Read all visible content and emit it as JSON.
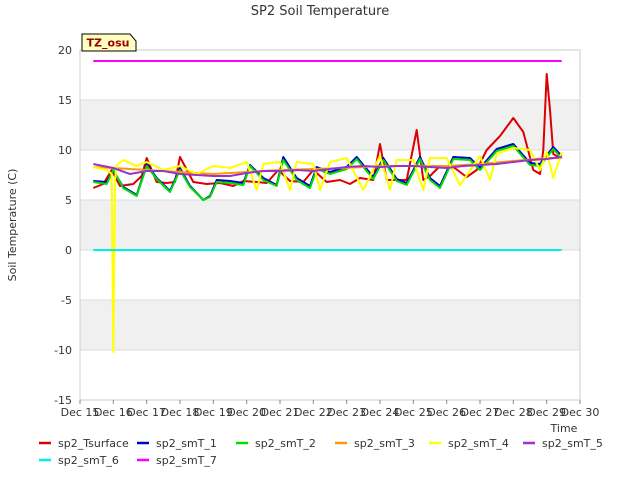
{
  "chart_data": {
    "type": "line",
    "title": "SP2 Soil Temperature",
    "xlabel": "Time",
    "ylabel": "Soil Temperature (C)",
    "badge": "TZ_osu",
    "xlim": [
      15,
      30
    ],
    "ylim": [
      -15,
      20
    ],
    "x_ticks": [
      15,
      16,
      17,
      18,
      19,
      20,
      21,
      22,
      23,
      24,
      25,
      26,
      27,
      28,
      29,
      30
    ],
    "x_tick_labels": [
      "Dec 15",
      "Dec 16",
      "Dec 17",
      "Dec 18",
      "Dec 19",
      "Dec 20",
      "Dec 21",
      "Dec 22",
      "Dec 23",
      "Dec 24",
      "Dec 25",
      "Dec 26",
      "Dec 27",
      "Dec 28",
      "Dec 29",
      "Dec 30"
    ],
    "y_ticks": [
      -15,
      -10,
      -5,
      0,
      5,
      10,
      15,
      20
    ],
    "y_tick_labels": [
      "-15",
      "-10",
      "-5",
      "0",
      "5",
      "10",
      "15",
      "20"
    ],
    "grid": true,
    "band_color": "#f0f0f0",
    "legend_position": "bottom",
    "series": [
      {
        "name": "sp2_Tsurface",
        "color": "#dd0000",
        "x": [
          15.4,
          15.7,
          15.95,
          16.2,
          16.6,
          16.85,
          17.0,
          17.3,
          17.6,
          17.85,
          18.0,
          18.4,
          18.8,
          19.2,
          19.6,
          19.9,
          20.3,
          20.6,
          20.95,
          21.3,
          21.7,
          22.0,
          22.4,
          22.8,
          23.1,
          23.4,
          23.8,
          24.0,
          24.2,
          24.4,
          24.8,
          25.1,
          25.3,
          25.5,
          25.8,
          26.2,
          26.6,
          26.9,
          27.2,
          27.6,
          28.0,
          28.3,
          28.6,
          28.8,
          28.9,
          29.0,
          29.1,
          29.2,
          29.3,
          29.45
        ],
        "y": [
          6.2,
          6.6,
          8.0,
          6.4,
          6.6,
          7.4,
          9.2,
          6.8,
          6.7,
          6.8,
          9.3,
          6.8,
          6.6,
          6.7,
          6.4,
          6.9,
          6.8,
          6.7,
          8.0,
          6.9,
          6.8,
          8.0,
          6.8,
          7.0,
          6.6,
          7.2,
          7.0,
          10.6,
          7.0,
          7.0,
          7.0,
          12.0,
          7.0,
          7.4,
          8.4,
          8.3,
          7.3,
          8.0,
          10.0,
          11.4,
          13.2,
          11.8,
          8.0,
          7.6,
          10.0,
          17.6,
          14.0,
          9.6,
          9.4,
          9.2
        ]
      },
      {
        "name": "sp2_smT_1",
        "color": "#0000cc",
        "x": [
          15.4,
          15.8,
          16.0,
          16.3,
          16.7,
          17.0,
          17.3,
          17.7,
          18.0,
          18.3,
          18.7,
          18.9,
          19.1,
          19.5,
          19.9,
          20.1,
          20.5,
          20.9,
          21.1,
          21.5,
          21.9,
          22.1,
          22.5,
          23.0,
          23.3,
          23.8,
          24.1,
          24.5,
          24.8,
          25.2,
          25.5,
          25.8,
          26.2,
          26.7,
          27.0,
          27.5,
          28.0,
          28.5,
          28.8,
          29.2,
          29.45
        ],
        "y": [
          6.9,
          6.8,
          7.9,
          6.3,
          5.5,
          8.6,
          7.2,
          5.9,
          8.2,
          6.4,
          5.0,
          5.4,
          7.0,
          6.9,
          6.7,
          8.5,
          7.2,
          6.5,
          9.3,
          7.2,
          6.4,
          8.3,
          7.8,
          8.3,
          9.3,
          7.3,
          9.2,
          7.1,
          6.7,
          9.3,
          7.2,
          6.4,
          9.3,
          9.2,
          8.2,
          10.1,
          10.6,
          8.7,
          8.6,
          10.3,
          9.4
        ]
      },
      {
        "name": "sp2_smT_2",
        "color": "#00dd00",
        "x": [
          15.4,
          15.8,
          16.0,
          16.3,
          16.7,
          17.0,
          17.3,
          17.7,
          18.0,
          18.3,
          18.7,
          18.9,
          19.1,
          19.5,
          19.9,
          20.1,
          20.5,
          20.9,
          21.1,
          21.5,
          21.9,
          22.1,
          22.5,
          23.0,
          23.3,
          23.8,
          24.1,
          24.5,
          24.8,
          25.2,
          25.5,
          25.8,
          26.2,
          26.7,
          27.0,
          27.5,
          28.0,
          28.5,
          28.8,
          29.2,
          29.45
        ],
        "y": [
          6.8,
          6.6,
          8.0,
          6.2,
          5.4,
          8.4,
          7.1,
          5.8,
          8.0,
          6.3,
          5.0,
          5.3,
          6.8,
          6.7,
          6.5,
          8.4,
          7.0,
          6.4,
          9.0,
          7.0,
          6.2,
          8.1,
          7.6,
          8.1,
          9.1,
          7.1,
          9.0,
          6.9,
          6.5,
          9.1,
          7.0,
          6.2,
          9.1,
          9.0,
          8.0,
          9.9,
          10.4,
          8.5,
          8.4,
          10.1,
          9.2
        ]
      },
      {
        "name": "sp2_smT_3",
        "color": "#ff9900",
        "x": [
          15.4,
          16.0,
          17.0,
          18.0,
          19.0,
          20.0,
          21.0,
          22.0,
          23.0,
          24.0,
          25.0,
          26.0,
          27.0,
          28.0,
          29.0,
          29.45
        ],
        "y": [
          8.3,
          8.2,
          8.0,
          7.8,
          7.6,
          7.8,
          8.0,
          8.1,
          8.2,
          8.4,
          8.4,
          8.4,
          8.6,
          8.9,
          9.2,
          9.2
        ]
      },
      {
        "name": "sp2_smT_4",
        "color": "#ffff00",
        "x": [
          15.4,
          15.8,
          15.95,
          16.0,
          16.05,
          16.1,
          16.3,
          16.7,
          17.0,
          17.5,
          18.0,
          18.5,
          19.0,
          19.5,
          20.0,
          20.3,
          20.5,
          21.0,
          21.3,
          21.5,
          22.0,
          22.2,
          22.5,
          23.0,
          23.5,
          24.0,
          24.3,
          24.5,
          25.0,
          25.3,
          25.5,
          26.0,
          26.4,
          27.0,
          27.3,
          27.5,
          28.0,
          28.5,
          28.8,
          29.0,
          29.2,
          29.45
        ],
        "y": [
          8.3,
          8.0,
          7.6,
          -10.2,
          7.0,
          8.5,
          9.0,
          8.4,
          8.8,
          8.0,
          8.4,
          7.6,
          8.4,
          8.2,
          8.8,
          6.0,
          8.6,
          8.8,
          6.0,
          8.8,
          8.6,
          6.0,
          8.8,
          9.2,
          6.0,
          9.4,
          6.0,
          9.0,
          9.0,
          6.0,
          9.2,
          9.2,
          6.5,
          9.4,
          7.0,
          9.6,
          10.2,
          10.0,
          8.0,
          9.8,
          7.2,
          9.8
        ]
      },
      {
        "name": "sp2_smT_5",
        "color": "#9933cc",
        "x": [
          15.4,
          16.0,
          16.5,
          17.0,
          17.5,
          18.0,
          18.5,
          19.0,
          19.5,
          20.0,
          20.5,
          21.0,
          21.5,
          22.0,
          22.5,
          23.0,
          23.5,
          24.0,
          24.5,
          25.0,
          25.5,
          26.0,
          26.5,
          27.0,
          27.5,
          28.0,
          28.5,
          29.0,
          29.45
        ],
        "y": [
          8.6,
          8.2,
          7.6,
          7.9,
          7.9,
          7.6,
          7.5,
          7.4,
          7.4,
          7.7,
          7.9,
          7.9,
          8.0,
          7.9,
          8.1,
          8.3,
          8.4,
          8.3,
          8.4,
          8.4,
          8.3,
          8.2,
          8.4,
          8.5,
          8.6,
          8.8,
          9.0,
          9.1,
          9.3
        ]
      },
      {
        "name": "sp2_smT_6",
        "color": "#00eeee",
        "x": [
          15.4,
          29.45
        ],
        "y": [
          0.0,
          0.0
        ]
      },
      {
        "name": "sp2_smT_7",
        "color": "#ff00ff",
        "x": [
          15.4,
          29.45
        ],
        "y": [
          18.9,
          18.9
        ]
      }
    ]
  }
}
